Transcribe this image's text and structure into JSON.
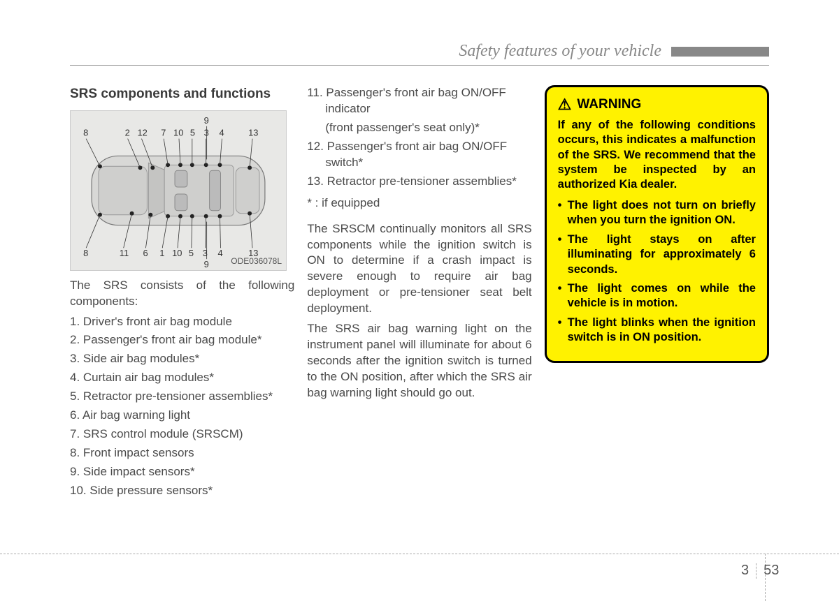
{
  "header": {
    "title": "Safety features of your vehicle"
  },
  "section_title": "SRS components and functions",
  "diagram": {
    "code": "ODE036078L",
    "callouts_top": [
      "8",
      "2",
      "12",
      "7",
      "10",
      "5",
      "3",
      "4",
      "13",
      "9"
    ],
    "callouts_bot": [
      "8",
      "11",
      "6",
      "1",
      "10",
      "5",
      "3",
      "4",
      "13",
      "9"
    ]
  },
  "intro": "The SRS consists of the following components:",
  "components": [
    "Driver's front air bag module",
    "Passenger's front air bag module*",
    "Side air bag modules*",
    "Curtain air bag modules*",
    "Retractor pre-tensioner assemblies*",
    "Air bag warning light",
    "SRS control module (SRSCM)",
    "Front impact sensors",
    "Side impact sensors*",
    "Side pressure sensors*"
  ],
  "components_col2": [
    {
      "n": "11",
      "main": "Passenger's front air bag ON/OFF indicator",
      "sub": "(front passenger's seat only)*"
    },
    {
      "n": "12",
      "main": "Passenger's front air bag ON/OFF switch*"
    },
    {
      "n": "13",
      "main": "Retractor pre-tensioner assemblies*"
    }
  ],
  "footnote": "* : if equipped",
  "para1": "The SRSCM continually monitors all SRS components while the ignition switch is ON to determine if a crash impact is severe enough to require air bag deployment or pre-tensioner seat belt deployment.",
  "para2": "The SRS air bag warning light on the instrument panel will illuminate for about 6 seconds after the ignition switch is turned to the ON position, after which the SRS air bag warning light should go out.",
  "warning": {
    "title": "WARNING",
    "intro": "If any of the following conditions occurs, this indicates a malfunction of the SRS. We recommend that the system be inspected by an authorized Kia dealer.",
    "items": [
      "The light does not turn on briefly when you turn the ignition ON.",
      "The light stays on after illuminating for approximately 6 seconds.",
      "The light comes on while the vehicle is in motion.",
      "The light blinks when the ignition switch is in ON position."
    ]
  },
  "folio": {
    "chapter": "3",
    "page": "53"
  },
  "colors": {
    "warning_bg": "#fff200",
    "diagram_bg": "#e8e8e6"
  }
}
